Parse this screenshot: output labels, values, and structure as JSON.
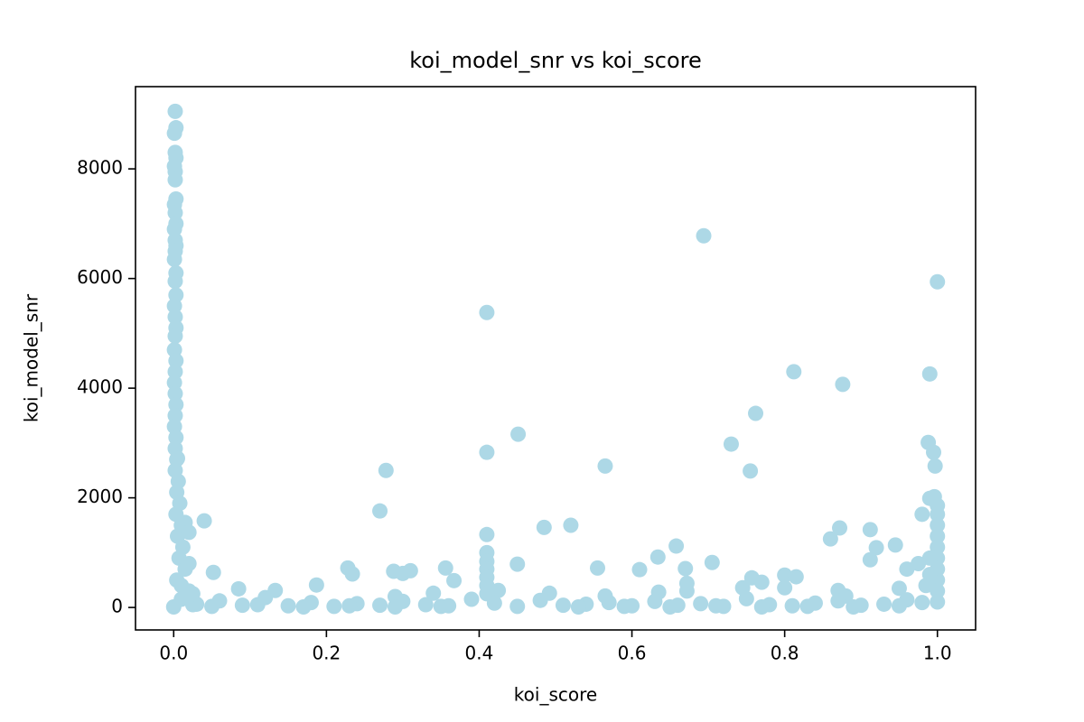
{
  "chart_data": {
    "type": "scatter",
    "title": "koi_model_snr vs koi_score",
    "x_label": "koi_score",
    "y_label": "koi_model_snr",
    "color": "#add8e6",
    "xlim": [
      -0.05,
      1.05
    ],
    "ylim": [
      -410,
      9500
    ],
    "xticks": [
      {
        "value": 0,
        "label": "0.0"
      },
      0.2,
      0.4,
      0.6,
      0.8,
      {
        "value": 1,
        "label": "1.0"
      }
    ],
    "yticks": [
      0,
      2000,
      4000,
      6000,
      8000
    ],
    "x": [
      0.002,
      0.003,
      0.001,
      0.002,
      0.003,
      0.001,
      0.002,
      0.002,
      0.003,
      0.001,
      0.002,
      0.003,
      0.001,
      0.002,
      0.003,
      0.002,
      0.001,
      0.003,
      0.002,
      0.003,
      0.001,
      0.002,
      0.003,
      0.002,
      0.001,
      0.003,
      0.002,
      0.001,
      0.002,
      0.003,
      0.002,
      0.001,
      0.003,
      0.002,
      0.004,
      0.002,
      0.006,
      0.004,
      0.008,
      0.003,
      0.01,
      0.005,
      0.012,
      0.007,
      0.015,
      0.004,
      0.02,
      0.01,
      0.025,
      0.694,
      1.0,
      0.41,
      0.812,
      0.876,
      0.99,
      0.762,
      0.451,
      0.73,
      0.41,
      0.988,
      0.995,
      0.565,
      0.997,
      0.755,
      0.278,
      0.27,
      0.485,
      0.52,
      0.41,
      0.872,
      0.912,
      0.86,
      0.658,
      0.945,
      0.92,
      0.98,
      0.99,
      0.996,
      1.0,
      0.04,
      0.015,
      0.02,
      0.005,
      0.41,
      0.41,
      0.634,
      0.705,
      0.45,
      0.912,
      0.555,
      0.61,
      0.67,
      0.356,
      0.228,
      0.234,
      0.288,
      0.31,
      0.3,
      0.052,
      0.8,
      0.815,
      0.757,
      0.77,
      0.367,
      0.187,
      0.745,
      0.8,
      0.085,
      0.133,
      0.425,
      0.34,
      0.492,
      0.635,
      0.87,
      0.88,
      0.565,
      0.29,
      0.672,
      0.672,
      1.0,
      1.0,
      1.0,
      1.0,
      1.0,
      1.0,
      1.0,
      1.0,
      1.0,
      0.99,
      0.99,
      0.985,
      0.975,
      0.96,
      0.95,
      0.41,
      0.41,
      0.41,
      0.41,
      0.02,
      0.03,
      0.06,
      0.09,
      0.12,
      0.15,
      0.18,
      0.21,
      0.24,
      0.27,
      0.3,
      0.33,
      0.36,
      0.39,
      0.42,
      0.45,
      0.48,
      0.51,
      0.54,
      0.57,
      0.6,
      0.63,
      0.66,
      0.69,
      0.72,
      0.75,
      0.78,
      0.81,
      0.84,
      0.87,
      0.9,
      0.93,
      0.96,
      0.98,
      0.05,
      0.11,
      0.17,
      0.23,
      0.29,
      0.35,
      0.53,
      0.59,
      0.65,
      0.71,
      0.77,
      0.83,
      0.89,
      0.95,
      0.0,
      0.01,
      0.025
    ],
    "values": [
      9050,
      8750,
      8650,
      8300,
      8200,
      8050,
      7950,
      7800,
      7450,
      7350,
      7200,
      7000,
      6900,
      6700,
      6600,
      6500,
      6350,
      6100,
      5950,
      5700,
      5500,
      5300,
      5100,
      4950,
      4700,
      4500,
      4300,
      4100,
      3900,
      3700,
      3500,
      3300,
      3100,
      2900,
      2700,
      2500,
      2300,
      2100,
      1900,
      1700,
      1500,
      1300,
      1100,
      900,
      700,
      500,
      300,
      150,
      50,
      6780,
      5940,
      5380,
      4300,
      4070,
      4260,
      3540,
      3160,
      2980,
      2830,
      3010,
      2830,
      2580,
      2580,
      2490,
      2500,
      1760,
      1460,
      1500,
      1330,
      1450,
      1420,
      1250,
      1120,
      1140,
      1090,
      1700,
      1990,
      2020,
      1860,
      1580,
      1550,
      1370,
      2720,
      1000,
      840,
      920,
      820,
      790,
      870,
      720,
      690,
      710,
      720,
      720,
      610,
      660,
      670,
      620,
      640,
      590,
      560,
      540,
      460,
      490,
      410,
      360,
      360,
      340,
      310,
      310,
      260,
      260,
      280,
      310,
      210,
      210,
      200,
      440,
      300,
      1700,
      1500,
      1300,
      1100,
      900,
      700,
      500,
      300,
      100,
      900,
      600,
      400,
      800,
      700,
      350,
      700,
      550,
      400,
      250,
      800,
      60,
      120,
      40,
      180,
      30,
      90,
      20,
      70,
      40,
      110,
      50,
      30,
      150,
      80,
      20,
      130,
      40,
      60,
      90,
      30,
      110,
      40,
      70,
      20,
      160,
      50,
      30,
      80,
      120,
      40,
      60,
      140,
      90,
      20,
      50,
      10,
      30,
      10,
      20,
      10,
      20,
      10,
      30,
      10,
      20,
      10,
      30,
      10,
      400,
      250
    ]
  }
}
